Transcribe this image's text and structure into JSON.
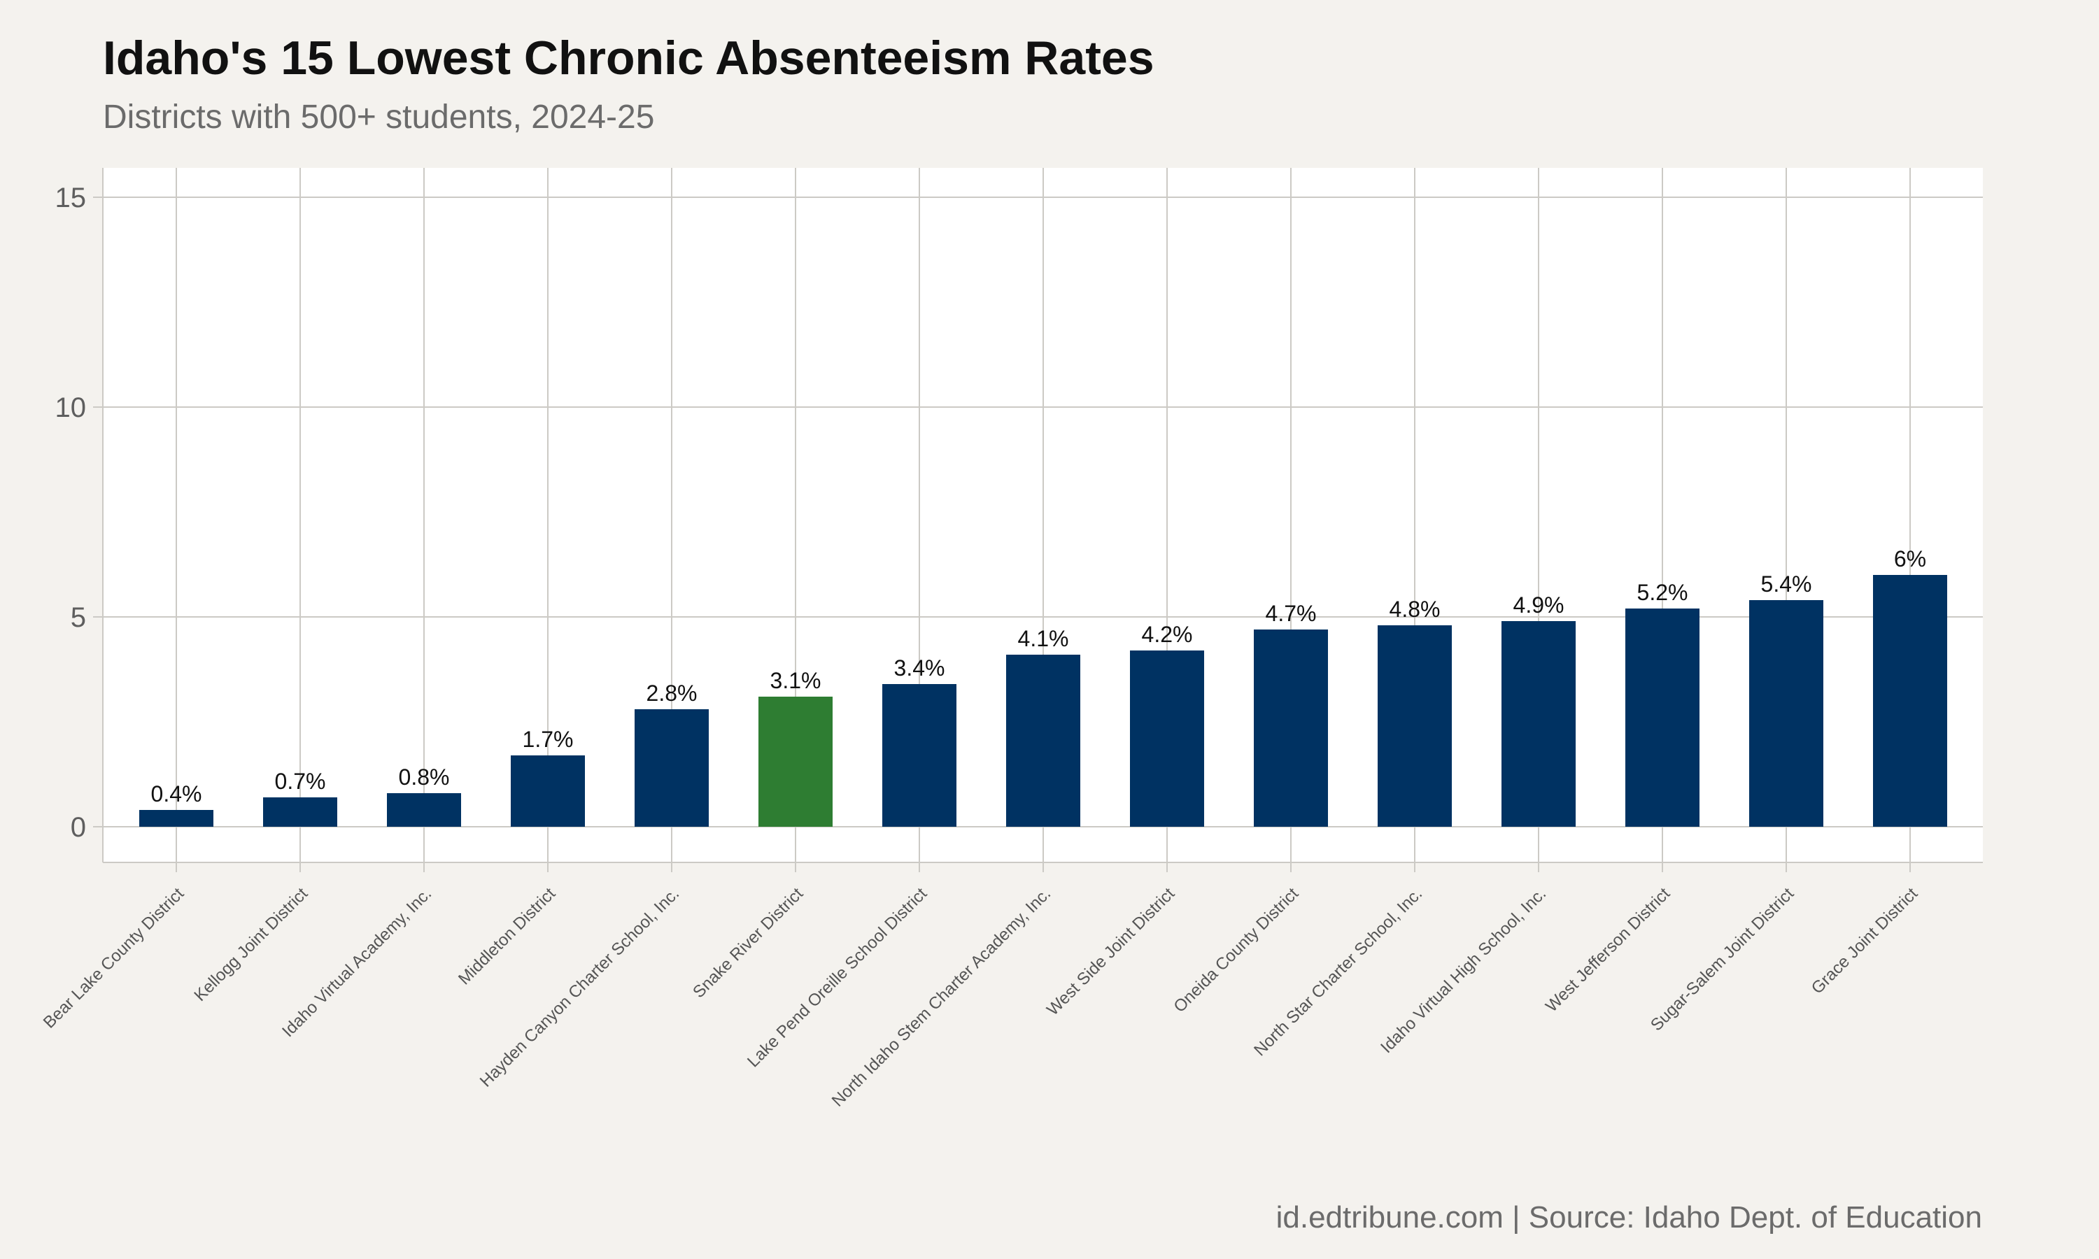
{
  "header": {
    "title": "Idaho's 15 Lowest Chronic Absenteeism Rates",
    "subtitle": "Districts with 500+ students, 2024-25"
  },
  "footer": {
    "caption": "id.edtribune.com | Source: Idaho Dept. of Education"
  },
  "colors": {
    "default_bar": "#003262",
    "highlight_bar": "#2e7d32",
    "panel_background": "#ffffff",
    "page_background": "#f4f2ee",
    "grid": "#cccac5"
  },
  "chart_data": {
    "type": "bar",
    "title": "Idaho's 15 Lowest Chronic Absenteeism Rates",
    "subtitle": "Districts with 500+ students, 2024-25",
    "xlabel": "",
    "ylabel": "",
    "ylim": [
      -0.85,
      15.7
    ],
    "yticks": [
      0,
      5,
      10,
      15
    ],
    "grid": true,
    "highlight_category": "Snake River District",
    "categories": [
      "Bear Lake County District",
      "Kellogg Joint District",
      "Idaho Virtual Academy, Inc.",
      "Middleton District",
      "Hayden Canyon Charter School, Inc.",
      "Snake River District",
      "Lake Pend Oreille School District",
      "North Idaho Stem Charter Academy, Inc.",
      "West Side Joint District",
      "Oneida County District",
      "North Star Charter School, Inc.",
      "Idaho Virtual High School, Inc.",
      "West Jefferson District",
      "Sugar-Salem Joint District",
      "Grace Joint District"
    ],
    "values": [
      0.4,
      0.7,
      0.8,
      1.7,
      2.8,
      3.1,
      3.4,
      4.1,
      4.2,
      4.7,
      4.8,
      4.9,
      5.2,
      5.4,
      6
    ],
    "data_labels": [
      "0.4%",
      "0.7%",
      "0.8%",
      "1.7%",
      "2.8%",
      "3.1%",
      "3.4%",
      "4.1%",
      "4.2%",
      "4.7%",
      "4.8%",
      "4.9%",
      "5.2%",
      "5.4%",
      "6%"
    ]
  }
}
